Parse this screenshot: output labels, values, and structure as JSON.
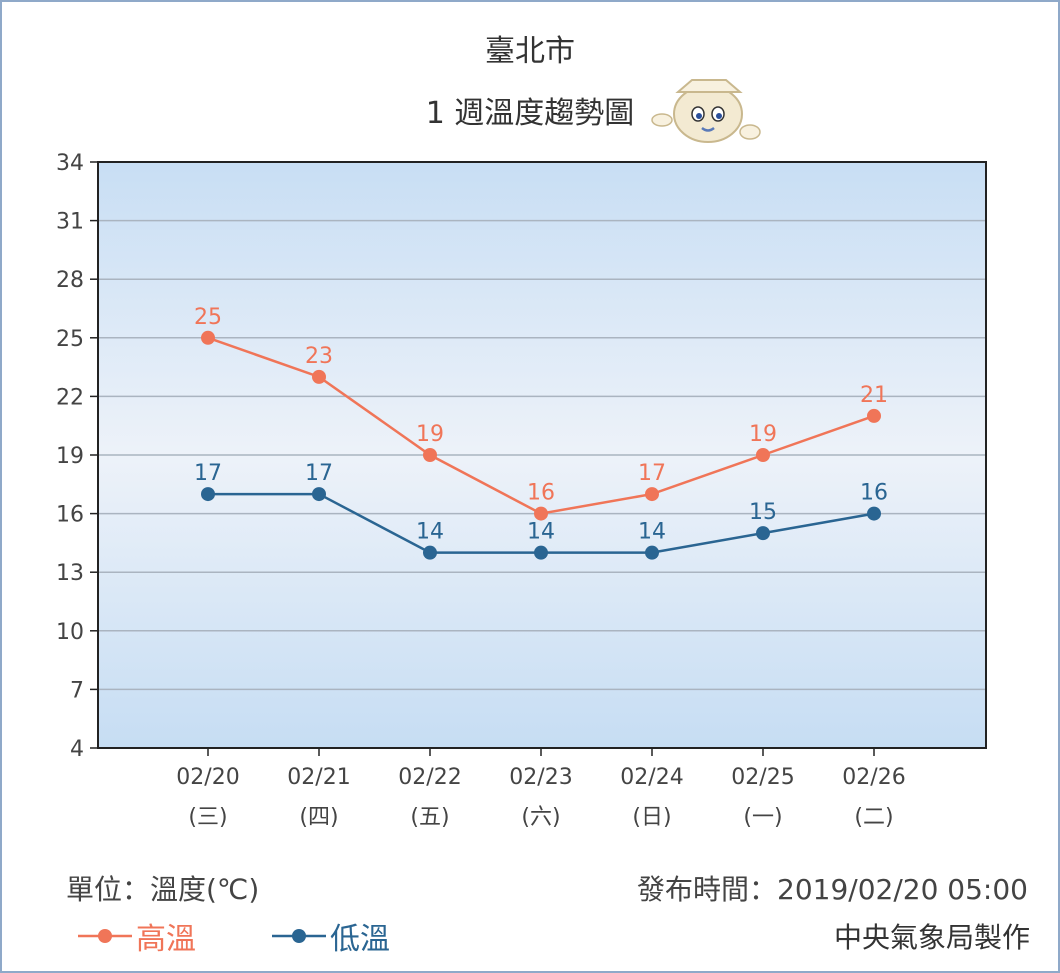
{
  "title": "臺北市",
  "subtitle": "1 週溫度趨勢圖",
  "unit_label": "單位：溫度(℃)",
  "issue_label": "發布時間：2019/02/20 05:00",
  "maker_label": "中央氣象局製作",
  "mascot_icon": "weather-mascot-icon",
  "colors": {
    "high": "#f07558",
    "low": "#2a6592",
    "plot_bg_top": "#c8def4",
    "plot_bg_mid": "#edf2f9",
    "plot_bg_bottom": "#c6ddf3",
    "grid": "#aab4c0",
    "axis": "#222222",
    "frame": "#8fa9c9"
  },
  "chart_data": {
    "type": "line",
    "categories": [
      "02/20",
      "02/21",
      "02/22",
      "02/23",
      "02/24",
      "02/25",
      "02/26"
    ],
    "category_sublabels": [
      "(三)",
      "(四)",
      "(五)",
      "(六)",
      "(日)",
      "(一)",
      "(二)"
    ],
    "series": [
      {
        "name": "高溫",
        "values": [
          25,
          23,
          19,
          16,
          17,
          19,
          21
        ]
      },
      {
        "name": "低溫",
        "values": [
          17,
          17,
          14,
          14,
          14,
          15,
          16
        ]
      }
    ],
    "ylim": [
      4,
      34
    ],
    "yticks": [
      4,
      7,
      10,
      13,
      16,
      19,
      22,
      25,
      28,
      31,
      34
    ],
    "grid": true,
    "legend": "bottom-left"
  }
}
